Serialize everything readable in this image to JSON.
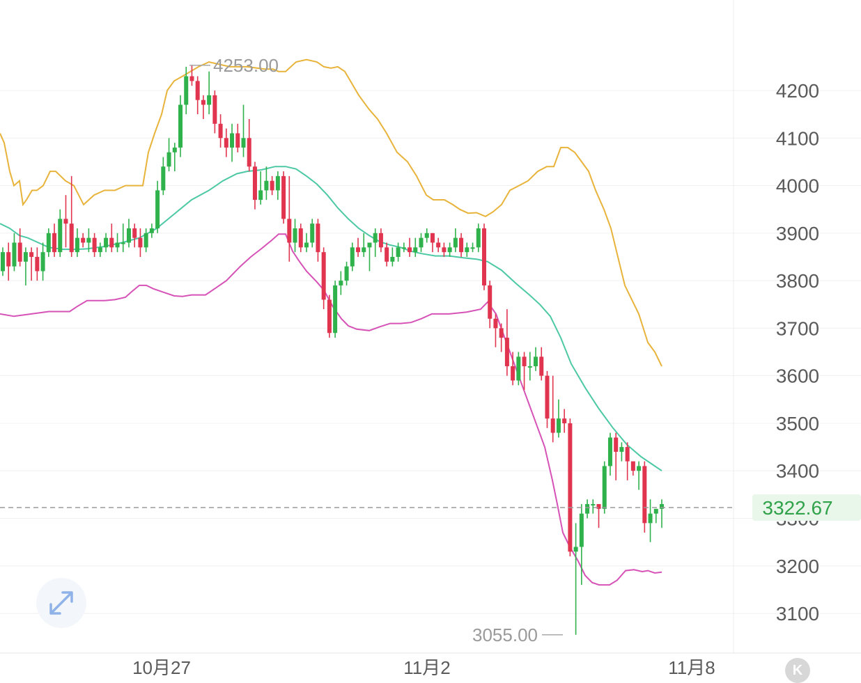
{
  "chart_data": {
    "type": "candlestick",
    "y_ticks": [
      "4200",
      "4100",
      "4000",
      "3900",
      "3800",
      "3700",
      "3600",
      "3500",
      "3400",
      "3300",
      "3200",
      "3100"
    ],
    "ylim": [
      3040,
      4290
    ],
    "x_labels": [
      "10月27",
      "11月2",
      "11月8"
    ],
    "high_label": "4253.00",
    "low_label": "3055.00",
    "current_price_label": "3322.67",
    "current_price": 3322.67,
    "colors": {
      "up": "#2fb24c",
      "down": "#e0344f",
      "upper_band": "#e8b33a",
      "middle_band": "#4cc9a4",
      "lower_band": "#d652b6",
      "current_line": "#9a9a9a"
    },
    "candles": [
      [
        3820,
        3860,
        3810,
        3870
      ],
      [
        3860,
        3830,
        3800,
        3880
      ],
      [
        3830,
        3880,
        3820,
        3900
      ],
      [
        3880,
        3840,
        3830,
        3910
      ],
      [
        3840,
        3860,
        3790,
        3870
      ],
      [
        3860,
        3850,
        3800,
        3870
      ],
      [
        3850,
        3820,
        3800,
        3870
      ],
      [
        3820,
        3860,
        3800,
        3880
      ],
      [
        3860,
        3900,
        3850,
        3910
      ],
      [
        3900,
        3860,
        3850,
        3920
      ],
      [
        3860,
        3930,
        3850,
        3950
      ],
      [
        3930,
        3920,
        3870,
        3980
      ],
      [
        3920,
        3860,
        3850,
        4020
      ],
      [
        3860,
        3890,
        3850,
        3910
      ],
      [
        3890,
        3880,
        3870,
        3900
      ],
      [
        3880,
        3890,
        3860,
        3910
      ],
      [
        3890,
        3860,
        3850,
        3900
      ],
      [
        3860,
        3870,
        3850,
        3880
      ],
      [
        3870,
        3890,
        3860,
        3900
      ],
      [
        3890,
        3870,
        3860,
        3920
      ],
      [
        3870,
        3880,
        3860,
        3900
      ],
      [
        3880,
        3880,
        3860,
        3920
      ],
      [
        3880,
        3910,
        3870,
        3930
      ],
      [
        3910,
        3890,
        3870,
        3920
      ],
      [
        3890,
        3870,
        3850,
        3910
      ],
      [
        3870,
        3900,
        3860,
        3910
      ],
      [
        3900,
        3910,
        3890,
        3920
      ],
      [
        3910,
        3990,
        3900,
        4010
      ],
      [
        3990,
        4040,
        3980,
        4060
      ],
      [
        4040,
        4070,
        4030,
        4100
      ],
      [
        4070,
        4080,
        4030,
        4090
      ],
      [
        4080,
        4170,
        4060,
        4190
      ],
      [
        4170,
        4230,
        4150,
        4250
      ],
      [
        4230,
        4220,
        4210,
        4253
      ],
      [
        4220,
        4180,
        4150,
        4230
      ],
      [
        4180,
        4170,
        4140,
        4190
      ],
      [
        4170,
        4190,
        4150,
        4240
      ],
      [
        4190,
        4130,
        4110,
        4200
      ],
      [
        4130,
        4100,
        4080,
        4150
      ],
      [
        4100,
        4080,
        4060,
        4120
      ],
      [
        4080,
        4110,
        4050,
        4130
      ],
      [
        4110,
        4080,
        4070,
        4130
      ],
      [
        4080,
        4100,
        4060,
        4170
      ],
      [
        4100,
        4040,
        4030,
        4140
      ],
      [
        4040,
        3970,
        3950,
        4050
      ],
      [
        3970,
        3990,
        3960,
        4030
      ],
      [
        3990,
        4010,
        3970,
        4040
      ],
      [
        4010,
        3990,
        3980,
        4020
      ],
      [
        3990,
        4020,
        3970,
        4030
      ],
      [
        4020,
        3930,
        3920,
        4030
      ],
      [
        3930,
        3880,
        3840,
        4020
      ],
      [
        3880,
        3910,
        3860,
        3930
      ],
      [
        3910,
        3870,
        3860,
        3920
      ],
      [
        3870,
        3880,
        3860,
        3900
      ],
      [
        3880,
        3920,
        3870,
        3930
      ],
      [
        3920,
        3860,
        3840,
        3930
      ],
      [
        3860,
        3760,
        3740,
        3870
      ],
      [
        3760,
        3690,
        3680,
        3770
      ],
      [
        3690,
        3790,
        3680,
        3800
      ],
      [
        3790,
        3800,
        3770,
        3820
      ],
      [
        3800,
        3830,
        3790,
        3840
      ],
      [
        3830,
        3870,
        3820,
        3880
      ],
      [
        3870,
        3860,
        3850,
        3890
      ],
      [
        3860,
        3870,
        3850,
        3900
      ],
      [
        3870,
        3880,
        3820,
        3880
      ],
      [
        3880,
        3900,
        3850,
        3910
      ],
      [
        3900,
        3870,
        3860,
        3910
      ],
      [
        3870,
        3840,
        3830,
        3880
      ],
      [
        3840,
        3850,
        3830,
        3870
      ],
      [
        3850,
        3870,
        3840,
        3880
      ],
      [
        3870,
        3870,
        3860,
        3880
      ],
      [
        3870,
        3860,
        3850,
        3890
      ],
      [
        3860,
        3870,
        3850,
        3890
      ],
      [
        3870,
        3890,
        3860,
        3900
      ],
      [
        3890,
        3900,
        3880,
        3910
      ],
      [
        3900,
        3880,
        3860,
        3900
      ],
      [
        3880,
        3870,
        3860,
        3890
      ],
      [
        3870,
        3860,
        3850,
        3880
      ],
      [
        3860,
        3870,
        3850,
        3880
      ],
      [
        3870,
        3890,
        3860,
        3910
      ],
      [
        3890,
        3860,
        3850,
        3900
      ],
      [
        3860,
        3870,
        3850,
        3880
      ],
      [
        3870,
        3870,
        3860,
        3880
      ],
      [
        3870,
        3910,
        3860,
        3920
      ],
      [
        3910,
        3790,
        3780,
        3920
      ],
      [
        3790,
        3720,
        3700,
        3800
      ],
      [
        3720,
        3700,
        3660,
        3730
      ],
      [
        3700,
        3680,
        3650,
        3710
      ],
      [
        3680,
        3620,
        3600,
        3740
      ],
      [
        3620,
        3590,
        3580,
        3650
      ],
      [
        3590,
        3640,
        3580,
        3650
      ],
      [
        3640,
        3620,
        3570,
        3650
      ],
      [
        3620,
        3620,
        3590,
        3650
      ],
      [
        3620,
        3640,
        3610,
        3660
      ],
      [
        3640,
        3600,
        3590,
        3660
      ],
      [
        3600,
        3510,
        3490,
        3610
      ],
      [
        3510,
        3480,
        3460,
        3600
      ],
      [
        3480,
        3510,
        3470,
        3550
      ],
      [
        3510,
        3500,
        3480,
        3530
      ],
      [
        3500,
        3230,
        3220,
        3510
      ],
      [
        3230,
        3240,
        3055,
        3290
      ],
      [
        3240,
        3310,
        3160,
        3330
      ],
      [
        3310,
        3330,
        3300,
        3340
      ],
      [
        3330,
        3330,
        3310,
        3340
      ],
      [
        3330,
        3320,
        3280,
        3330
      ],
      [
        3320,
        3410,
        3310,
        3420
      ],
      [
        3410,
        3470,
        3390,
        3480
      ],
      [
        3470,
        3440,
        3380,
        3480
      ],
      [
        3440,
        3450,
        3420,
        3460
      ],
      [
        3450,
        3420,
        3380,
        3460
      ],
      [
        3420,
        3400,
        3390,
        3410
      ],
      [
        3400,
        3410,
        3360,
        3420
      ],
      [
        3410,
        3290,
        3270,
        3420
      ],
      [
        3290,
        3310,
        3250,
        3340
      ],
      [
        3310,
        3320,
        3290,
        3320
      ],
      [
        3320,
        3330,
        3280,
        3340
      ]
    ],
    "upper_band": [
      [
        0,
        4110
      ],
      [
        6,
        4090
      ],
      [
        14,
        4030
      ],
      [
        20,
        4000
      ],
      [
        28,
        4010
      ],
      [
        33,
        3960
      ],
      [
        38,
        3970
      ],
      [
        46,
        3990
      ],
      [
        53,
        3990
      ],
      [
        62,
        4000
      ],
      [
        72,
        4030
      ],
      [
        80,
        4030
      ],
      [
        94,
        4010
      ],
      [
        106,
        4000
      ],
      [
        120,
        3960
      ],
      [
        135,
        3980
      ],
      [
        150,
        3990
      ],
      [
        165,
        3990
      ],
      [
        180,
        4000
      ],
      [
        196,
        4000
      ],
      [
        205,
        4000
      ],
      [
        213,
        4070
      ],
      [
        222,
        4110
      ],
      [
        232,
        4150
      ],
      [
        240,
        4200
      ],
      [
        250,
        4220
      ],
      [
        262,
        4230
      ],
      [
        285,
        4250
      ],
      [
        300,
        4260
      ],
      [
        330,
        4250
      ],
      [
        355,
        4250
      ],
      [
        380,
        4245
      ],
      [
        392,
        4245
      ],
      [
        400,
        4240
      ],
      [
        410,
        4240
      ],
      [
        425,
        4260
      ],
      [
        440,
        4265
      ],
      [
        455,
        4260
      ],
      [
        465,
        4250
      ],
      [
        475,
        4247
      ],
      [
        485,
        4250
      ],
      [
        495,
        4240
      ],
      [
        505,
        4215
      ],
      [
        515,
        4190
      ],
      [
        530,
        4160
      ],
      [
        542,
        4140
      ],
      [
        555,
        4110
      ],
      [
        570,
        4070
      ],
      [
        585,
        4050
      ],
      [
        598,
        4020
      ],
      [
        612,
        3980
      ],
      [
        622,
        3970
      ],
      [
        638,
        3970
      ],
      [
        650,
        3960
      ],
      [
        660,
        3950
      ],
      [
        672,
        3942
      ],
      [
        684,
        3943
      ],
      [
        697,
        3935
      ],
      [
        708,
        3945
      ],
      [
        720,
        3960
      ],
      [
        732,
        3990
      ],
      [
        745,
        4000
      ],
      [
        758,
        4010
      ],
      [
        772,
        4030
      ],
      [
        785,
        4040
      ],
      [
        795,
        4040
      ],
      [
        805,
        4080
      ],
      [
        815,
        4080
      ],
      [
        825,
        4070
      ],
      [
        835,
        4050
      ],
      [
        845,
        4030
      ],
      [
        855,
        3990
      ],
      [
        867,
        3950
      ],
      [
        877,
        3910
      ],
      [
        887,
        3850
      ],
      [
        897,
        3790
      ],
      [
        907,
        3760
      ],
      [
        917,
        3730
      ],
      [
        930,
        3670
      ],
      [
        940,
        3650
      ],
      [
        950,
        3620
      ]
    ],
    "middle_band": [
      [
        0,
        3920
      ],
      [
        14,
        3910
      ],
      [
        28,
        3895
      ],
      [
        40,
        3890
      ],
      [
        55,
        3880
      ],
      [
        70,
        3870
      ],
      [
        90,
        3866
      ],
      [
        110,
        3866
      ],
      [
        125,
        3867
      ],
      [
        150,
        3872
      ],
      [
        175,
        3880
      ],
      [
        200,
        3890
      ],
      [
        225,
        3910
      ],
      [
        250,
        3940
      ],
      [
        275,
        3970
      ],
      [
        300,
        3990
      ],
      [
        320,
        4010
      ],
      [
        340,
        4025
      ],
      [
        355,
        4030
      ],
      [
        375,
        4033
      ],
      [
        395,
        4040
      ],
      [
        410,
        4040
      ],
      [
        425,
        4035
      ],
      [
        440,
        4020
      ],
      [
        455,
        4003
      ],
      [
        470,
        3980
      ],
      [
        485,
        3953
      ],
      [
        500,
        3930
      ],
      [
        515,
        3910
      ],
      [
        530,
        3895
      ],
      [
        545,
        3882
      ],
      [
        560,
        3875
      ],
      [
        575,
        3870
      ],
      [
        590,
        3862
      ],
      [
        605,
        3857
      ],
      [
        625,
        3852
      ],
      [
        645,
        3852
      ],
      [
        665,
        3848
      ],
      [
        685,
        3845
      ],
      [
        700,
        3840
      ],
      [
        720,
        3822
      ],
      [
        740,
        3795
      ],
      [
        760,
        3770
      ],
      [
        775,
        3750
      ],
      [
        790,
        3725
      ],
      [
        805,
        3680
      ],
      [
        820,
        3625
      ],
      [
        840,
        3575
      ],
      [
        860,
        3530
      ],
      [
        880,
        3490
      ],
      [
        900,
        3455
      ],
      [
        920,
        3430
      ],
      [
        935,
        3415
      ],
      [
        950,
        3400
      ]
    ],
    "lower_band": [
      [
        0,
        3730
      ],
      [
        20,
        3725
      ],
      [
        45,
        3730
      ],
      [
        70,
        3735
      ],
      [
        100,
        3735
      ],
      [
        110,
        3745
      ],
      [
        125,
        3758
      ],
      [
        150,
        3758
      ],
      [
        165,
        3760
      ],
      [
        180,
        3765
      ],
      [
        190,
        3778
      ],
      [
        200,
        3790
      ],
      [
        210,
        3790
      ],
      [
        220,
        3783
      ],
      [
        232,
        3777
      ],
      [
        250,
        3768
      ],
      [
        262,
        3767
      ],
      [
        275,
        3770
      ],
      [
        295,
        3770
      ],
      [
        310,
        3785
      ],
      [
        325,
        3800
      ],
      [
        345,
        3830
      ],
      [
        360,
        3850
      ],
      [
        375,
        3867
      ],
      [
        390,
        3885
      ],
      [
        400,
        3898
      ],
      [
        410,
        3898
      ],
      [
        420,
        3862
      ],
      [
        430,
        3840
      ],
      [
        440,
        3820
      ],
      [
        455,
        3797
      ],
      [
        465,
        3780
      ],
      [
        478,
        3745
      ],
      [
        490,
        3720
      ],
      [
        500,
        3705
      ],
      [
        512,
        3698
      ],
      [
        530,
        3695
      ],
      [
        545,
        3703
      ],
      [
        560,
        3710
      ],
      [
        575,
        3710
      ],
      [
        590,
        3712
      ],
      [
        605,
        3720
      ],
      [
        620,
        3730
      ],
      [
        645,
        3730
      ],
      [
        670,
        3734
      ],
      [
        690,
        3740
      ],
      [
        700,
        3755
      ],
      [
        712,
        3730
      ],
      [
        722,
        3690
      ],
      [
        732,
        3650
      ],
      [
        742,
        3610
      ],
      [
        752,
        3570
      ],
      [
        762,
        3530
      ],
      [
        772,
        3490
      ],
      [
        782,
        3450
      ],
      [
        793,
        3380
      ],
      [
        800,
        3330
      ],
      [
        808,
        3270
      ],
      [
        818,
        3240
      ],
      [
        830,
        3210
      ],
      [
        840,
        3180
      ],
      [
        850,
        3165
      ],
      [
        860,
        3160
      ],
      [
        875,
        3160
      ],
      [
        886,
        3170
      ],
      [
        898,
        3190
      ],
      [
        910,
        3192
      ],
      [
        922,
        3188
      ],
      [
        930,
        3190
      ],
      [
        940,
        3185
      ],
      [
        950,
        3187
      ]
    ]
  }
}
